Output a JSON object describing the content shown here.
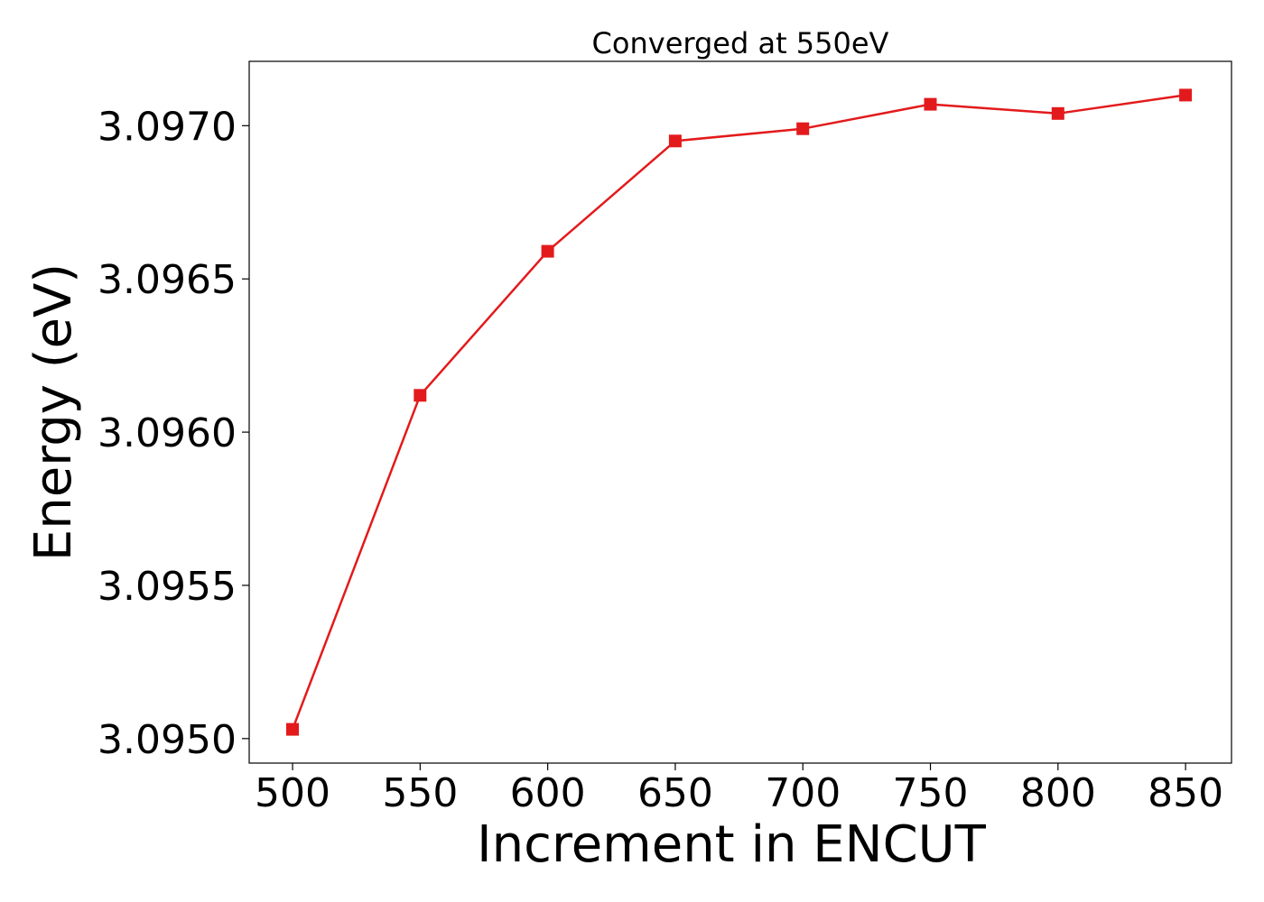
{
  "chart_data": {
    "type": "line",
    "title": "Converged at 550eV",
    "xlabel": "Increment in ENCUT",
    "ylabel": "Energy (eV)",
    "x": [
      500,
      550,
      600,
      650,
      700,
      750,
      800,
      850
    ],
    "series": [
      {
        "values": [
          3.09503,
          3.09612,
          3.09659,
          3.09695,
          3.09699,
          3.09707,
          3.09704,
          3.0971
        ],
        "color": "#e31a1c",
        "marker": "square"
      }
    ],
    "xlim": [
      483,
      868
    ],
    "ylim": [
      3.09492,
      3.09721
    ],
    "x_ticks": [
      500,
      550,
      600,
      650,
      700,
      750,
      800,
      850
    ],
    "x_tick_labels": [
      "500",
      "550",
      "600",
      "650",
      "700",
      "750",
      "800",
      "850"
    ],
    "y_ticks": [
      3.095,
      3.0955,
      3.096,
      3.0965,
      3.097
    ],
    "y_tick_labels": [
      "3.0950",
      "3.0955",
      "3.0960",
      "3.0965",
      "3.0970"
    ],
    "grid": false,
    "legend": "none"
  }
}
